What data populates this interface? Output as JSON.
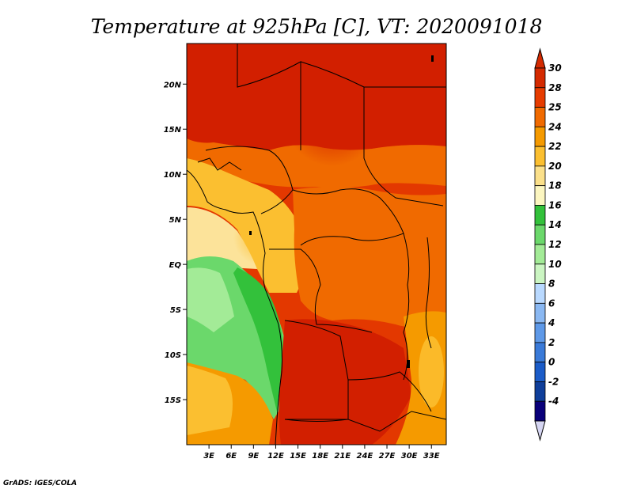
{
  "title": "Temperature at 925hPa [C], VT: 2020091018",
  "credit": "GrADS: IGES/COLA",
  "lat_ticks": [
    {
      "lat": 20,
      "label": "20N"
    },
    {
      "lat": 15,
      "label": "15N"
    },
    {
      "lat": 10,
      "label": "10N"
    },
    {
      "lat": 5,
      "label": "5N"
    },
    {
      "lat": 0,
      "label": "EQ"
    },
    {
      "lat": -5,
      "label": "5S"
    },
    {
      "lat": -10,
      "label": "10S"
    },
    {
      "lat": -15,
      "label": "15S"
    }
  ],
  "lon_ticks": [
    {
      "lon": 3,
      "label": "3E"
    },
    {
      "lon": 6,
      "label": "6E"
    },
    {
      "lon": 9,
      "label": "9E"
    },
    {
      "lon": 12,
      "label": "12E"
    },
    {
      "lon": 15,
      "label": "15E"
    },
    {
      "lon": 18,
      "label": "18E"
    },
    {
      "lon": 21,
      "label": "21E"
    },
    {
      "lon": 24,
      "label": "24E"
    },
    {
      "lon": 27,
      "label": "27E"
    },
    {
      "lon": 30,
      "label": "30E"
    },
    {
      "lon": 33,
      "label": "33E"
    }
  ],
  "map_extent": {
    "lon_min": 0,
    "lon_max": 35,
    "lat_min": -20,
    "lat_max": 24.5
  },
  "colorbar": {
    "labels": [
      "30",
      "28",
      "25",
      "24",
      "22",
      "20",
      "18",
      "16",
      "14",
      "12",
      "10",
      "8",
      "6",
      "4",
      "2",
      "0",
      "-2",
      "-4"
    ],
    "colors": [
      "#d42a00",
      "#e63c00",
      "#f06a00",
      "#f59a00",
      "#fbbf30",
      "#fbe08a",
      "#fcf6c0",
      "#33c13b",
      "#6bd86b",
      "#a3eb97",
      "#cbf5c2",
      "#b9d9ff",
      "#8ab8f2",
      "#5e99e8",
      "#3a7ad8",
      "#1b5cc8",
      "#0f3e9a",
      "#09007a"
    ],
    "top_color": "#d42a00",
    "bottom_color": "#d5d5f2"
  }
}
